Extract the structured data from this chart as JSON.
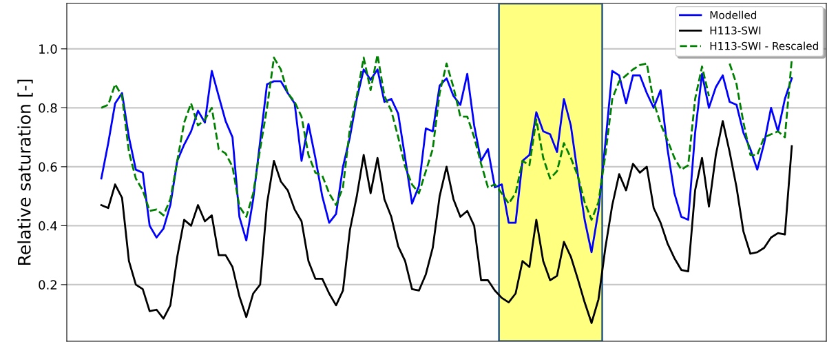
{
  "chart_data": {
    "type": "line",
    "ylabel": "Relative saturation [-]",
    "categories": [
      null,
      null,
      null,
      null,
      null,
      null,
      null,
      null,
      null,
      null,
      null,
      null,
      null,
      null,
      null,
      null,
      null,
      null,
      null,
      null,
      null,
      null,
      null,
      null,
      null,
      null,
      null,
      null,
      null,
      null,
      null,
      null,
      null,
      null,
      null,
      null,
      null,
      null,
      null,
      null,
      null,
      null,
      null,
      null,
      null,
      null,
      null,
      null,
      null,
      null,
      null,
      null,
      null,
      null,
      null,
      null,
      null,
      null,
      null,
      null,
      null,
      null,
      null,
      null,
      null,
      null,
      null,
      null,
      null,
      null,
      null,
      null,
      null,
      null,
      null,
      null,
      null,
      null,
      null,
      null,
      null,
      null,
      null,
      null,
      null,
      null,
      null,
      null,
      null,
      null,
      null,
      null,
      null,
      null,
      null,
      null,
      null,
      null,
      null,
      null,
      null
    ],
    "ylim": [
      0.008,
      1.154
    ],
    "yticks": [
      {
        "value": 0.2,
        "label": "0.2"
      },
      {
        "value": 0.4,
        "label": "0.4"
      },
      {
        "value": 0.6,
        "label": "0.6"
      },
      {
        "value": 0.8,
        "label": "0.8"
      },
      {
        "value": 1.0,
        "label": "1.0"
      }
    ],
    "grid": "y",
    "legend": "top right",
    "series": [
      {
        "name": "Modelled",
        "color": "#0000ff",
        "line_style": "solid",
        "values": [
          0.56,
          0.68,
          0.815,
          0.85,
          0.7,
          0.59,
          0.58,
          0.4,
          0.36,
          0.39,
          0.47,
          0.62,
          0.675,
          0.72,
          0.79,
          0.75,
          0.925,
          0.84,
          0.755,
          0.7,
          0.43,
          0.35,
          0.49,
          0.685,
          0.88,
          0.89,
          0.89,
          0.85,
          0.815,
          0.62,
          0.745,
          0.63,
          0.5,
          0.41,
          0.44,
          0.6,
          0.7,
          0.83,
          0.93,
          0.895,
          0.93,
          0.82,
          0.83,
          0.78,
          0.63,
          0.475,
          0.535,
          0.73,
          0.72,
          0.875,
          0.9,
          0.84,
          0.81,
          0.915,
          0.74,
          0.62,
          0.66,
          0.53,
          0.54,
          0.41,
          0.41,
          0.62,
          0.64,
          0.785,
          0.72,
          0.71,
          0.65,
          0.83,
          0.74,
          0.575,
          0.42,
          0.31,
          0.45,
          0.68,
          0.925,
          0.91,
          0.815,
          0.91,
          0.91,
          0.85,
          0.8,
          0.86,
          0.66,
          0.51,
          0.43,
          0.42,
          0.715,
          0.915,
          0.8,
          0.87,
          0.91,
          0.82,
          0.81,
          0.715,
          0.66,
          0.59,
          0.68,
          0.8,
          0.72,
          0.83,
          0.9
        ]
      },
      {
        "name": "H113-SWI",
        "color": "#000000",
        "line_style": "solid",
        "values": [
          0.47,
          0.46,
          0.54,
          0.495,
          0.28,
          0.2,
          0.185,
          0.11,
          0.115,
          0.085,
          0.13,
          0.295,
          0.42,
          0.4,
          0.47,
          0.415,
          0.435,
          0.3,
          0.3,
          0.26,
          0.16,
          0.09,
          0.17,
          0.2,
          0.475,
          0.62,
          0.55,
          0.52,
          0.455,
          0.415,
          0.28,
          0.22,
          0.22,
          0.17,
          0.13,
          0.18,
          0.385,
          0.5,
          0.64,
          0.51,
          0.63,
          0.49,
          0.43,
          0.33,
          0.28,
          0.185,
          0.18,
          0.235,
          0.325,
          0.5,
          0.6,
          0.49,
          0.43,
          0.45,
          0.4,
          0.215,
          0.215,
          0.18,
          0.155,
          0.14,
          0.17,
          0.28,
          0.26,
          0.42,
          0.28,
          0.215,
          0.23,
          0.345,
          0.295,
          0.22,
          0.14,
          0.07,
          0.15,
          0.325,
          0.47,
          0.575,
          0.52,
          0.61,
          0.58,
          0.6,
          0.46,
          0.41,
          0.34,
          0.29,
          0.25,
          0.245,
          0.52,
          0.63,
          0.465,
          0.64,
          0.755,
          0.65,
          0.53,
          0.38,
          0.305,
          0.31,
          0.325,
          0.36,
          0.375,
          0.37,
          0.67
        ]
      },
      {
        "name": "H113-SWI - Rescaled",
        "color": "#008000",
        "line_style": "dashed",
        "values": [
          0.8,
          0.81,
          0.88,
          0.84,
          0.65,
          0.56,
          0.52,
          0.45,
          0.455,
          0.435,
          0.49,
          0.62,
          0.75,
          0.815,
          0.74,
          0.76,
          0.8,
          0.66,
          0.645,
          0.6,
          0.465,
          0.43,
          0.51,
          0.66,
          0.8,
          0.97,
          0.93,
          0.85,
          0.82,
          0.77,
          0.64,
          0.58,
          0.57,
          0.51,
          0.47,
          0.53,
          0.73,
          0.84,
          0.97,
          0.86,
          0.98,
          0.84,
          0.79,
          0.7,
          0.6,
          0.54,
          0.51,
          0.585,
          0.66,
          0.85,
          0.95,
          0.87,
          0.77,
          0.77,
          0.7,
          0.61,
          0.53,
          0.54,
          0.51,
          0.475,
          0.51,
          0.62,
          0.605,
          0.76,
          0.63,
          0.56,
          0.585,
          0.68,
          0.63,
          0.57,
          0.48,
          0.42,
          0.48,
          0.64,
          0.83,
          0.89,
          0.91,
          0.93,
          0.945,
          0.95,
          0.82,
          0.745,
          0.69,
          0.63,
          0.59,
          0.605,
          0.83,
          0.94,
          0.84,
          null,
          null,
          0.95,
          0.88,
          0.75,
          0.64,
          0.64,
          0.7,
          0.71,
          0.72,
          0.7,
          0.965
        ]
      }
    ]
  }
}
